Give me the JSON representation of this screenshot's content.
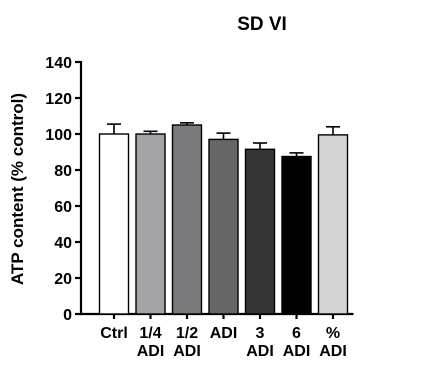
{
  "chart_data": {
    "type": "bar",
    "title": "SD VI",
    "ylabel": "ATP content (% control)",
    "xlabel": "",
    "ylim": [
      0,
      140
    ],
    "yticks": [
      "0",
      "20",
      "40",
      "60",
      "80",
      "100",
      "120",
      "140"
    ],
    "grid": false,
    "categories": [
      [
        "Ctrl"
      ],
      [
        "1/4",
        "ADI"
      ],
      [
        "1/2",
        "ADI"
      ],
      [
        "ADI"
      ],
      [
        "3",
        "ADI"
      ],
      [
        "6",
        "ADI"
      ],
      [
        "%",
        "ADI"
      ]
    ],
    "values": [
      100,
      100,
      105,
      97,
      91.5,
      87.5,
      99.5
    ],
    "errors": [
      5.5,
      1.5,
      1.2,
      3.5,
      3.5,
      2,
      4.5
    ],
    "colors": [
      "#ffffff",
      "#a4a4a8",
      "#7b7b7d",
      "#666666",
      "#353535",
      "#000000",
      "#d4d4d4"
    ]
  }
}
